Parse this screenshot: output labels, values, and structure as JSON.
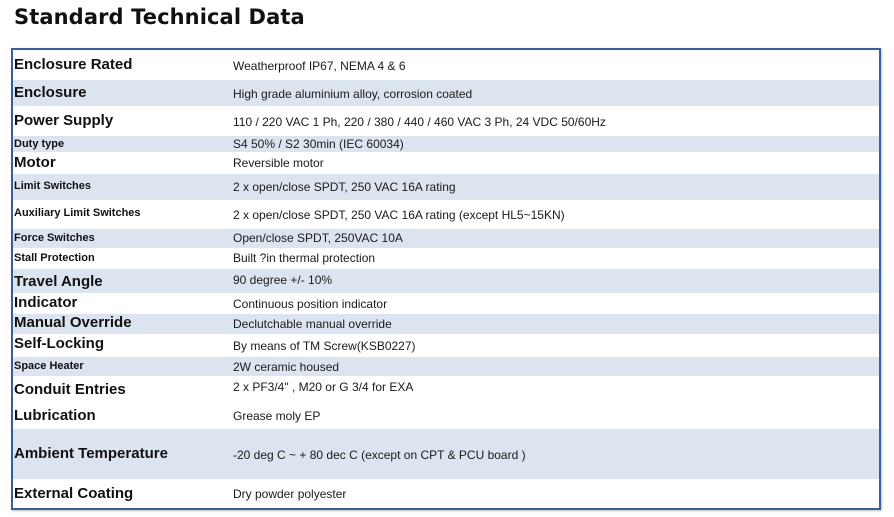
{
  "title": "Standard Technical Data",
  "rows": [
    {
      "label": "Enclosure Rated",
      "value": "Weatherproof IP67, NEMA 4 & 6"
    },
    {
      "label": "Enclosure",
      "value": "High grade aluminium alloy, corrosion coated"
    },
    {
      "label": "Power Supply",
      "value": "110 / 220 VAC 1 Ph,  220 / 380 / 440 / 460 VAC 3 Ph, 24 VDC 50/60Hz"
    },
    {
      "label": "Duty type",
      "value": "S4 50% / S2 30min (IEC 60034)"
    },
    {
      "label": "Motor",
      "value": "Reversible motor"
    },
    {
      "label": "Limit Switches",
      "value": "2 x open/close SPDT, 250 VAC 16A rating"
    },
    {
      "label": "Auxiliary Limit Switches",
      "value": "2 x open/close SPDT, 250 VAC 16A rating (except HL5~15KN)"
    },
    {
      "label": "Force Switches",
      "value": "Open/close SPDT, 250VAC 10A"
    },
    {
      "label": "Stall Protection",
      "value": "Built ?in thermal protection"
    },
    {
      "label": "Travel Angle",
      "value": "90 degree  +/- 10%"
    },
    {
      "label": "Indicator",
      "value": "Continuous position indicator"
    },
    {
      "label": "Manual Override",
      "value": "Declutchable manual override"
    },
    {
      "label": "Self-Locking",
      "value": "By means of TM Screw(KSB0227)"
    },
    {
      "label": "Space Heater",
      "value": "2W ceramic housed"
    },
    {
      "label": "Conduit Entries",
      "value": "2 x PF3/4\" , M20 or G 3/4 for EXA"
    },
    {
      "label": "Lubrication",
      "value": "Grease moly EP"
    },
    {
      "label": "Ambient Temperature",
      "value": "-20 deg C ~ + 80 dec C (except on CPT & PCU board )"
    },
    {
      "label": "External Coating",
      "value": "Dry powder  polyester"
    }
  ]
}
